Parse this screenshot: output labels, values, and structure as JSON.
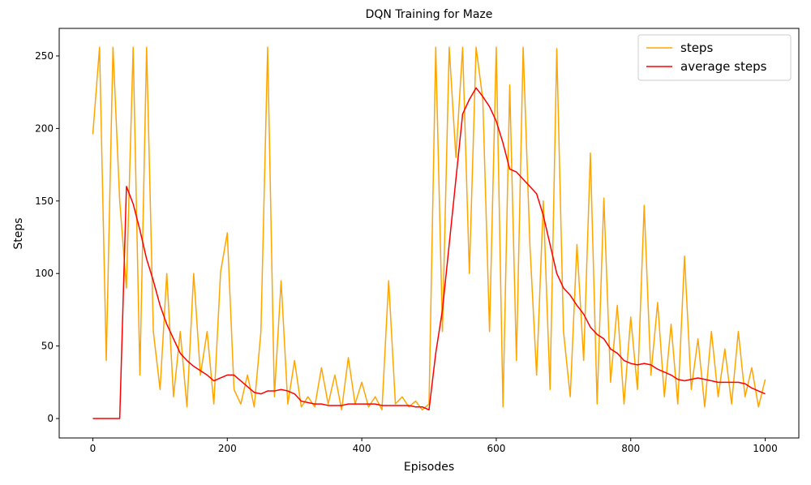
{
  "chart_data": {
    "type": "line",
    "title": "DQN Training for Maze",
    "x_label": "Episodes",
    "y_label": "Steps",
    "x": [
      0,
      10,
      20,
      30,
      40,
      50,
      60,
      70,
      80,
      90,
      100,
      110,
      120,
      130,
      140,
      150,
      160,
      170,
      180,
      190,
      200,
      210,
      220,
      230,
      240,
      250,
      260,
      270,
      280,
      290,
      300,
      310,
      320,
      330,
      340,
      350,
      360,
      370,
      380,
      390,
      400,
      410,
      420,
      430,
      440,
      450,
      460,
      470,
      480,
      490,
      500,
      510,
      520,
      530,
      540,
      550,
      560,
      570,
      580,
      590,
      600,
      610,
      620,
      630,
      640,
      650,
      660,
      670,
      680,
      690,
      700,
      710,
      720,
      730,
      740,
      750,
      760,
      770,
      780,
      790,
      800,
      810,
      820,
      830,
      840,
      850,
      860,
      870,
      880,
      890,
      900,
      910,
      920,
      930,
      940,
      950,
      960,
      970,
      980,
      990,
      1000
    ],
    "series": [
      {
        "name": "steps",
        "color": "#ffa500",
        "values": [
          196,
          256,
          40,
          256,
          150,
          90,
          256,
          30,
          256,
          60,
          20,
          100,
          15,
          60,
          8,
          100,
          30,
          60,
          10,
          101,
          128,
          20,
          10,
          30,
          8,
          60,
          256,
          15,
          95,
          10,
          40,
          8,
          15,
          8,
          35,
          10,
          30,
          6,
          42,
          10,
          25,
          8,
          15,
          6,
          95,
          10,
          15,
          8,
          12,
          6,
          10,
          256,
          60,
          256,
          180,
          256,
          100,
          256,
          220,
          60,
          256,
          8,
          230,
          40,
          256,
          120,
          30,
          150,
          20,
          255,
          60,
          15,
          120,
          40,
          183,
          10,
          152,
          25,
          78,
          10,
          70,
          20,
          147,
          30,
          80,
          15,
          65,
          10,
          112,
          20,
          55,
          8,
          60,
          15,
          48,
          10,
          60,
          15,
          35,
          8,
          27
        ]
      },
      {
        "name": "average steps",
        "color": "#ff0000",
        "values": [
          0,
          0,
          0,
          0,
          0,
          160,
          148,
          130,
          110,
          95,
          78,
          65,
          55,
          45,
          40,
          36,
          33,
          30,
          26,
          28,
          30,
          30,
          26,
          22,
          18,
          17,
          19,
          19,
          20,
          19,
          17,
          12,
          11,
          10,
          10,
          9,
          9,
          9,
          10,
          10,
          10,
          10,
          10,
          9,
          9,
          9,
          9,
          9,
          8,
          8,
          6,
          45,
          75,
          120,
          165,
          210,
          220,
          228,
          222,
          215,
          205,
          190,
          172,
          170,
          165,
          160,
          155,
          140,
          120,
          100,
          90,
          85,
          78,
          72,
          63,
          58,
          55,
          48,
          45,
          40,
          38,
          37,
          38,
          37,
          34,
          32,
          30,
          27,
          26,
          27,
          28,
          27,
          26,
          25,
          25,
          25,
          25,
          24,
          21,
          19,
          17
        ]
      }
    ],
    "xlim": [
      -50,
      1050
    ],
    "ylim": [
      -13.4,
      269
    ],
    "xticks": [
      0,
      200,
      400,
      600,
      800,
      1000
    ],
    "yticks": [
      0,
      50,
      100,
      150,
      200,
      250
    ],
    "legend": "upper right"
  }
}
